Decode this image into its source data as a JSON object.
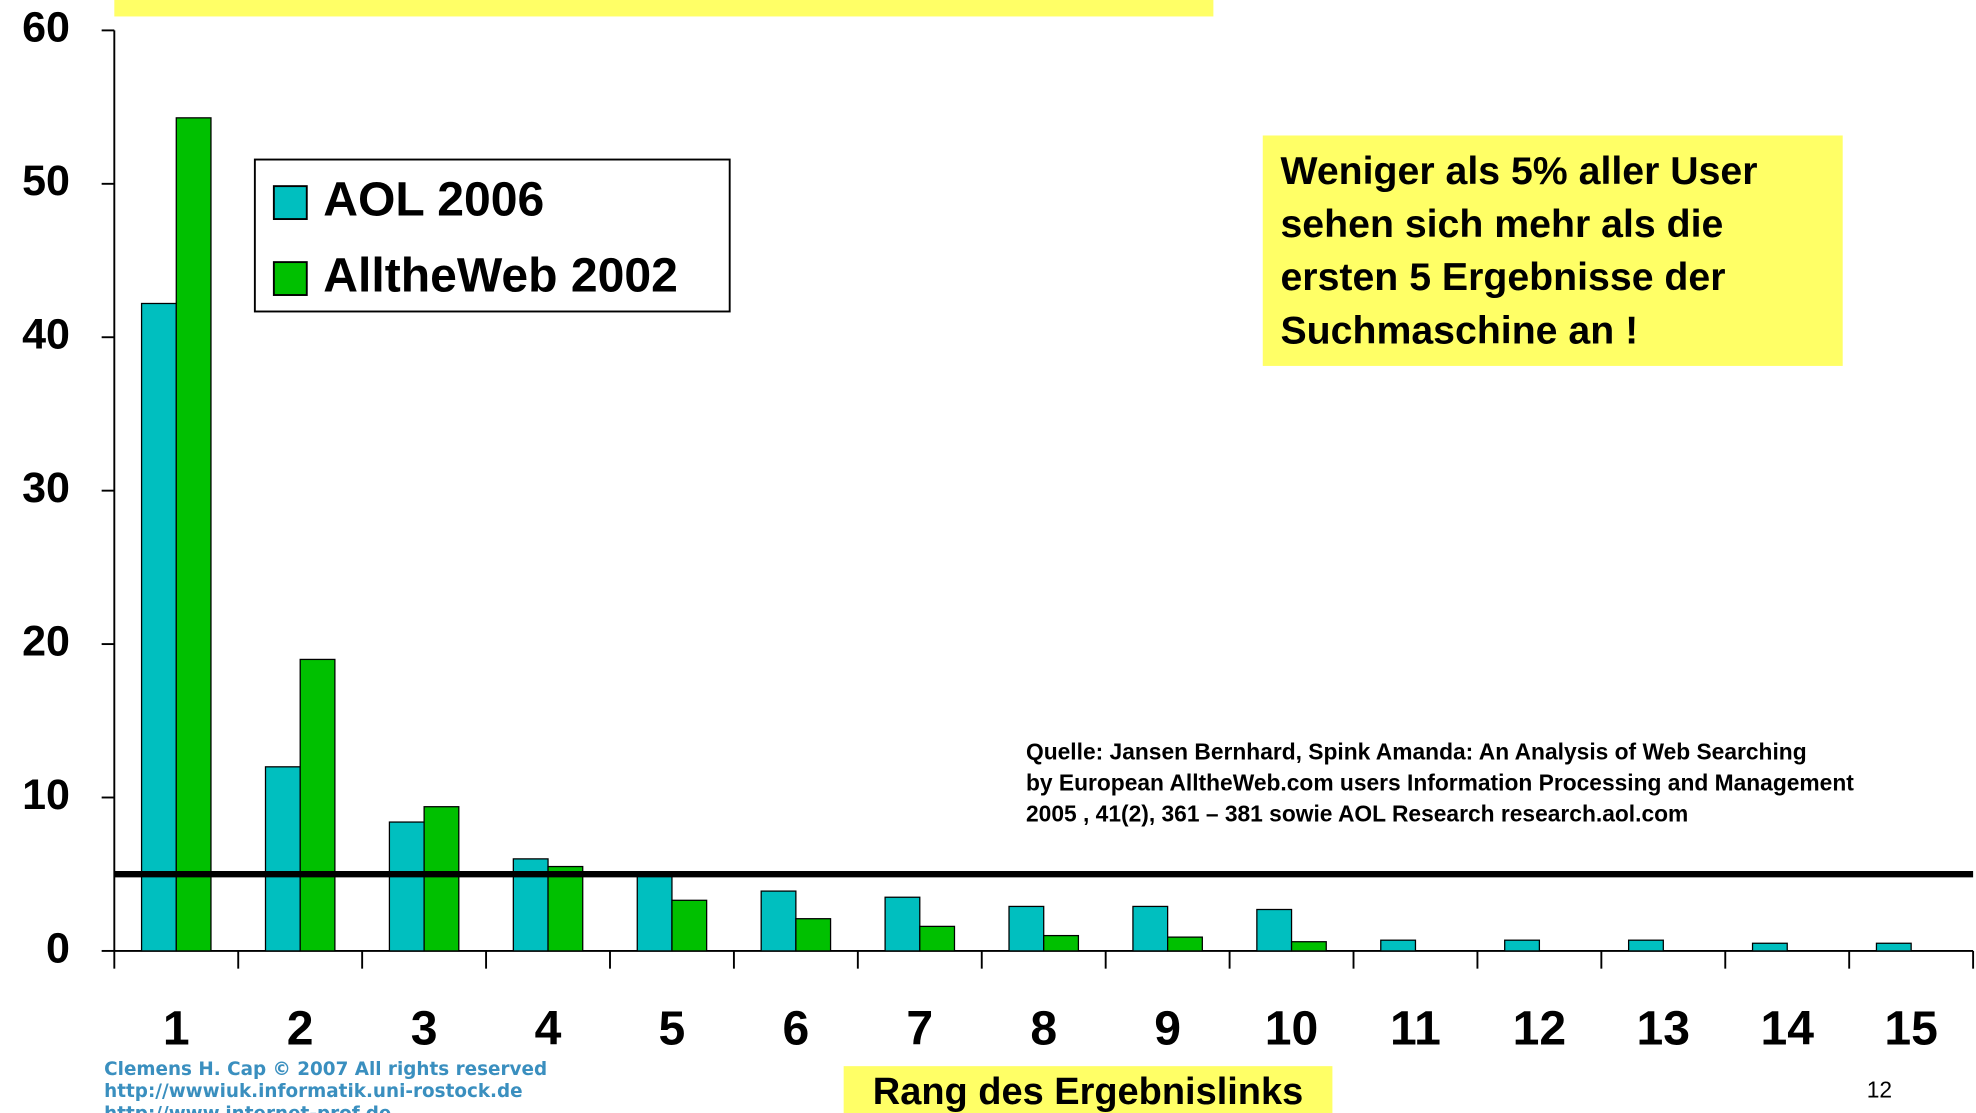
{
  "chart_data": {
    "type": "bar",
    "categories": [
      "1",
      "2",
      "3",
      "4",
      "5",
      "6",
      "7",
      "8",
      "9",
      "10",
      "11",
      "12",
      "13",
      "14",
      "15"
    ],
    "series": [
      {
        "name": "AOL 2006",
        "color": "#00bfbf",
        "values": [
          42.2,
          12.0,
          8.4,
          6.0,
          5.0,
          3.9,
          3.5,
          2.9,
          2.9,
          2.7,
          0.7,
          0.7,
          0.7,
          0.5,
          0.5
        ]
      },
      {
        "name": "AlltheWeb 2002",
        "color": "#00c000",
        "values": [
          54.3,
          19.0,
          9.4,
          5.5,
          3.3,
          2.1,
          1.6,
          1.0,
          0.9,
          0.6,
          null,
          null,
          null,
          null,
          null
        ]
      }
    ],
    "ylim": [
      0,
      60
    ],
    "yticks": [
      0,
      10,
      20,
      30,
      40,
      50,
      60
    ],
    "reference_line": 5,
    "legend": "upper left",
    "x_label": "Rang des Ergebnislinks",
    "annotation": [
      "Weniger als 5% aller User",
      "sehen sich mehr als die",
      "ersten 5 Ergebnisse der",
      "Suchmaschine an !"
    ],
    "source": [
      "Quelle: Jansen Bernhard, Spink Amanda: An Analysis of Web Searching",
      "by European AlltheWeb.com users Information Processing and Management",
      "2005 , 41(2), 361 – 381 sowie AOL Research research.aol.com"
    ]
  },
  "footer": {
    "lines": [
      "Clemens H. Cap © 2007 All rights reserved",
      "http://wwwiuk.informatik.uni-rostock.de",
      "http://www.internet-prof.de"
    ],
    "page_number": "12"
  }
}
